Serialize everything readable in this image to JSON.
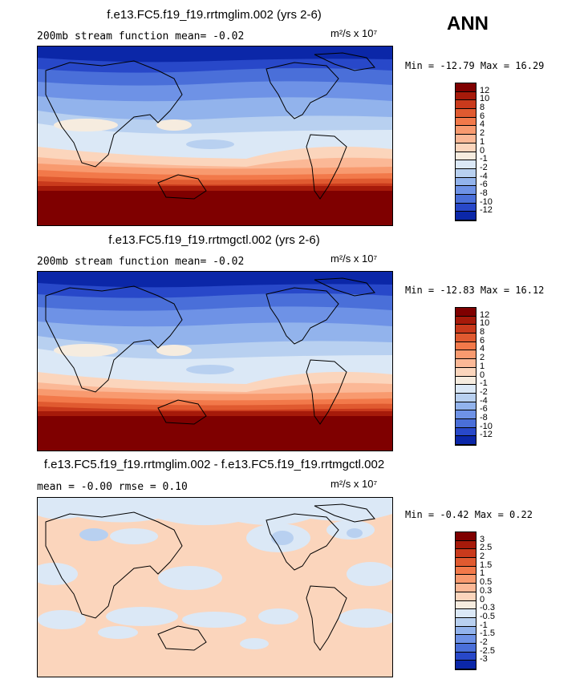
{
  "season": "ANN",
  "units": "m²/s x 10⁷",
  "panels": [
    {
      "title": "f.e13.FC5.f19_f19.rrtmglim.002 (yrs 2-6)",
      "subtitle": "200mb stream function   mean=   -0.02",
      "minmax": "Min = -12.79 Max =   16.29",
      "levels": [
        "12",
        "10",
        "8",
        "6",
        "4",
        "2",
        "1",
        "0",
        "-1",
        "-2",
        "-4",
        "-6",
        "-8",
        "-10",
        "-12"
      ],
      "colors": [
        "#7f0000",
        "#a61a0a",
        "#c93a1c",
        "#e05a30",
        "#f2794a",
        "#f89a6f",
        "#fbb896",
        "#fbd5bc",
        "#f6ecdf",
        "#dbe8f6",
        "#b8d0f0",
        "#92b3ec",
        "#6e92e6",
        "#4a6fd9",
        "#2848c9",
        "#0b27a8"
      ]
    },
    {
      "title": "f.e13.FC5.f19_f19.rrtmgctl.002 (yrs 2-6)",
      "subtitle": "200mb stream function   mean=   -0.02",
      "minmax": "Min = -12.83 Max =   16.12",
      "levels": [
        "12",
        "10",
        "8",
        "6",
        "4",
        "2",
        "1",
        "0",
        "-1",
        "-2",
        "-4",
        "-6",
        "-8",
        "-10",
        "-12"
      ],
      "colors": [
        "#7f0000",
        "#a61a0a",
        "#c93a1c",
        "#e05a30",
        "#f2794a",
        "#f89a6f",
        "#fbb896",
        "#fbd5bc",
        "#f6ecdf",
        "#dbe8f6",
        "#b8d0f0",
        "#92b3ec",
        "#6e92e6",
        "#4a6fd9",
        "#2848c9",
        "#0b27a8"
      ]
    },
    {
      "title": "f.e13.FC5.f19_f19.rrtmglim.002 - f.e13.FC5.f19_f19.rrtmgctl.002",
      "subtitle": "mean =   -0.00         rmse =    0.10",
      "minmax": "Min = -0.42 Max =   0.22",
      "levels": [
        "3",
        "2.5",
        "2",
        "1.5",
        "1",
        "0.5",
        "0.3",
        "0",
        "-0.3",
        "-0.5",
        "-1",
        "-1.5",
        "-2",
        "-2.5",
        "-3"
      ],
      "colors": [
        "#7f0000",
        "#a61a0a",
        "#c93a1c",
        "#e05a30",
        "#f2794a",
        "#f89a6f",
        "#fbb896",
        "#fbd5bc",
        "#f6ecdf",
        "#dbe8f6",
        "#b8d0f0",
        "#92b3ec",
        "#6e92e6",
        "#4a6fd9",
        "#2848c9",
        "#0b27a8"
      ]
    }
  ]
}
